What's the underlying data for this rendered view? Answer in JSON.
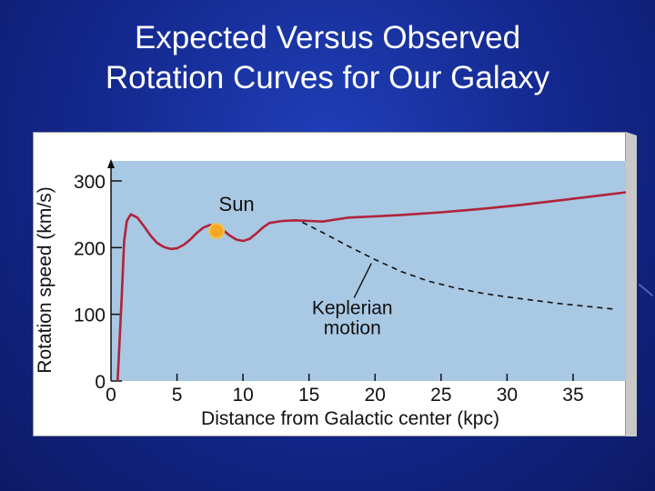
{
  "slide": {
    "title_line1": "Expected Versus Observed",
    "title_line2": "Rotation Curves for Our Galaxy"
  },
  "colors": {
    "slide_bg": "#1a33a6",
    "plot_bg": "#a9c8e3",
    "frame_bg": "#ffffff",
    "observed_curve": "#b0233a",
    "keplerian_curve": "#111111",
    "sun_marker": "#f5a623"
  },
  "chart_data": {
    "type": "line",
    "title": "",
    "xlabel": "Distance from Galactic center (kpc)",
    "ylabel": "Rotation speed (km/s)",
    "xlim": [
      0,
      39
    ],
    "ylim": [
      0,
      330
    ],
    "x_ticks": [
      0,
      5,
      10,
      15,
      20,
      25,
      30,
      35
    ],
    "y_ticks": [
      0,
      100,
      200,
      300
    ],
    "grid": false,
    "series": [
      {
        "name": "Observed rotation curve",
        "style": "solid",
        "points": [
          [
            0.5,
            0
          ],
          [
            0.8,
            120
          ],
          [
            1.0,
            210
          ],
          [
            1.2,
            240
          ],
          [
            1.5,
            250
          ],
          [
            2,
            245
          ],
          [
            2.5,
            232
          ],
          [
            3,
            218
          ],
          [
            3.5,
            207
          ],
          [
            4,
            201
          ],
          [
            4.5,
            198
          ],
          [
            5,
            199
          ],
          [
            5.5,
            204
          ],
          [
            6,
            212
          ],
          [
            6.5,
            222
          ],
          [
            7,
            230
          ],
          [
            7.5,
            234
          ],
          [
            8,
            232
          ],
          [
            8.5,
            226
          ],
          [
            9,
            218
          ],
          [
            9.5,
            212
          ],
          [
            10,
            210
          ],
          [
            10.5,
            213
          ],
          [
            11,
            221
          ],
          [
            11.5,
            230
          ],
          [
            12,
            237
          ],
          [
            13,
            240
          ],
          [
            14,
            241
          ],
          [
            15,
            240
          ],
          [
            16,
            239
          ],
          [
            17,
            242
          ],
          [
            18,
            245
          ],
          [
            20,
            247
          ],
          [
            22,
            249
          ],
          [
            25,
            253
          ],
          [
            28,
            258
          ],
          [
            31,
            264
          ],
          [
            34,
            271
          ],
          [
            37,
            278
          ],
          [
            39,
            283
          ]
        ]
      },
      {
        "name": "Keplerian motion",
        "style": "dashed",
        "points": [
          [
            14.5,
            238
          ],
          [
            16,
            223
          ],
          [
            18,
            202
          ],
          [
            20,
            182
          ],
          [
            22,
            164
          ],
          [
            24,
            150
          ],
          [
            26,
            140
          ],
          [
            28,
            132
          ],
          [
            30,
            126
          ],
          [
            32,
            121
          ],
          [
            34,
            116
          ],
          [
            36,
            112
          ],
          [
            38,
            108
          ]
        ]
      }
    ],
    "markers": [
      {
        "label": "Sun",
        "x": 8,
        "y": 225
      }
    ],
    "annotations": [
      {
        "text_line1": "Keplerian",
        "text_line2": "motion",
        "points_to": "Keplerian motion"
      }
    ]
  }
}
